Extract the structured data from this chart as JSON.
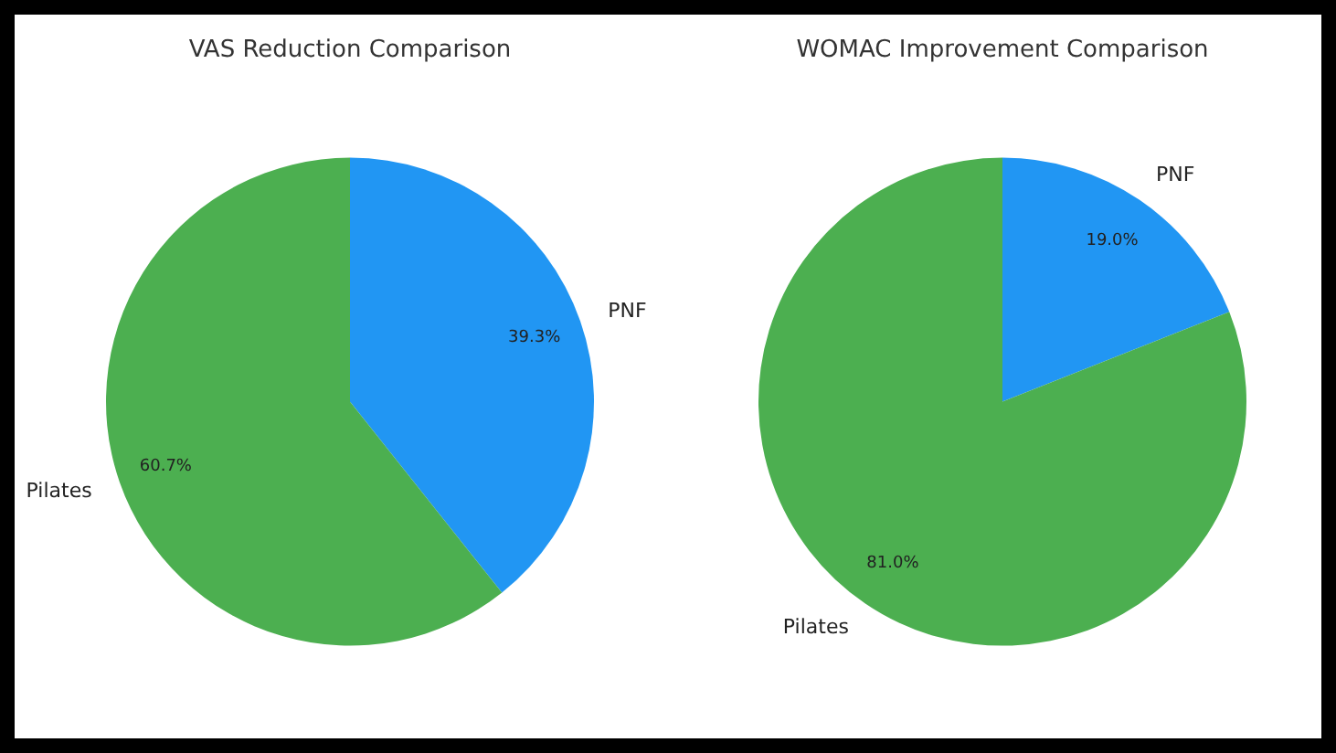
{
  "chart_data": [
    {
      "type": "pie",
      "title": "VAS Reduction Comparison",
      "categories": [
        "PNF",
        "Pilates"
      ],
      "values": [
        39.3,
        60.7
      ],
      "colors": [
        "#2196f3",
        "#4caf50"
      ],
      "value_labels": [
        "39.3%",
        "60.7%"
      ]
    },
    {
      "type": "pie",
      "title": "WOMAC Improvement Comparison",
      "categories": [
        "PNF",
        "Pilates"
      ],
      "values": [
        19.0,
        81.0
      ],
      "colors": [
        "#2196f3",
        "#4caf50"
      ],
      "value_labels": [
        "19.0%",
        "81.0%"
      ]
    }
  ]
}
